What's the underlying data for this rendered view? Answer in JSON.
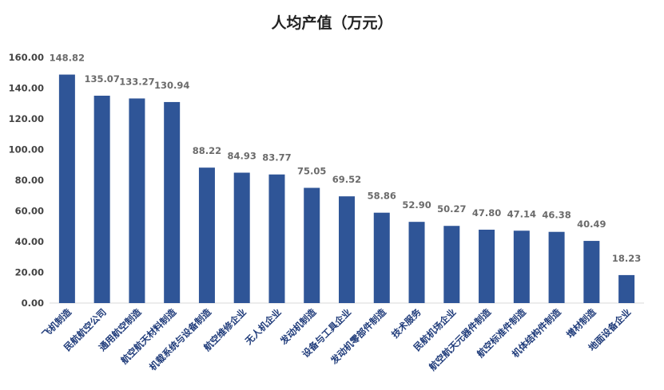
{
  "chart_data": {
    "type": "bar",
    "title": "人均产值（万元）",
    "xlabel": "",
    "ylabel": "",
    "ylim": [
      0,
      160
    ],
    "yticks": [
      "0.00",
      "20.00",
      "40.00",
      "60.00",
      "80.00",
      "100.00",
      "120.00",
      "140.00",
      "160.00"
    ],
    "grid": false,
    "bar_color": "#2f5597",
    "categories": [
      "飞机制造",
      "民航航空公司",
      "通用航空制造",
      "航空航天材料制造",
      "机载系统与设备制造",
      "航空维修企业",
      "无人机企业",
      "发动机制造",
      "设备与工具企业",
      "发动机零部件制造",
      "技术服务",
      "民航机场企业",
      "航空航天元器件制造",
      "航空标准件制造",
      "机体结构件制造",
      "增材制造",
      "地面设备企业"
    ],
    "values": [
      148.82,
      135.07,
      133.27,
      130.94,
      88.22,
      84.93,
      83.77,
      75.05,
      69.52,
      58.86,
      52.9,
      50.27,
      47.8,
      47.14,
      46.38,
      40.49,
      18.23
    ],
    "value_labels": [
      "148.82",
      "135.07",
      "133.27",
      "130.94",
      "88.22",
      "84.93",
      "83.77",
      "75.05",
      "69.52",
      "58.86",
      "52.90",
      "50.27",
      "47.80",
      "47.14",
      "46.38",
      "40.49",
      "18.23"
    ]
  }
}
